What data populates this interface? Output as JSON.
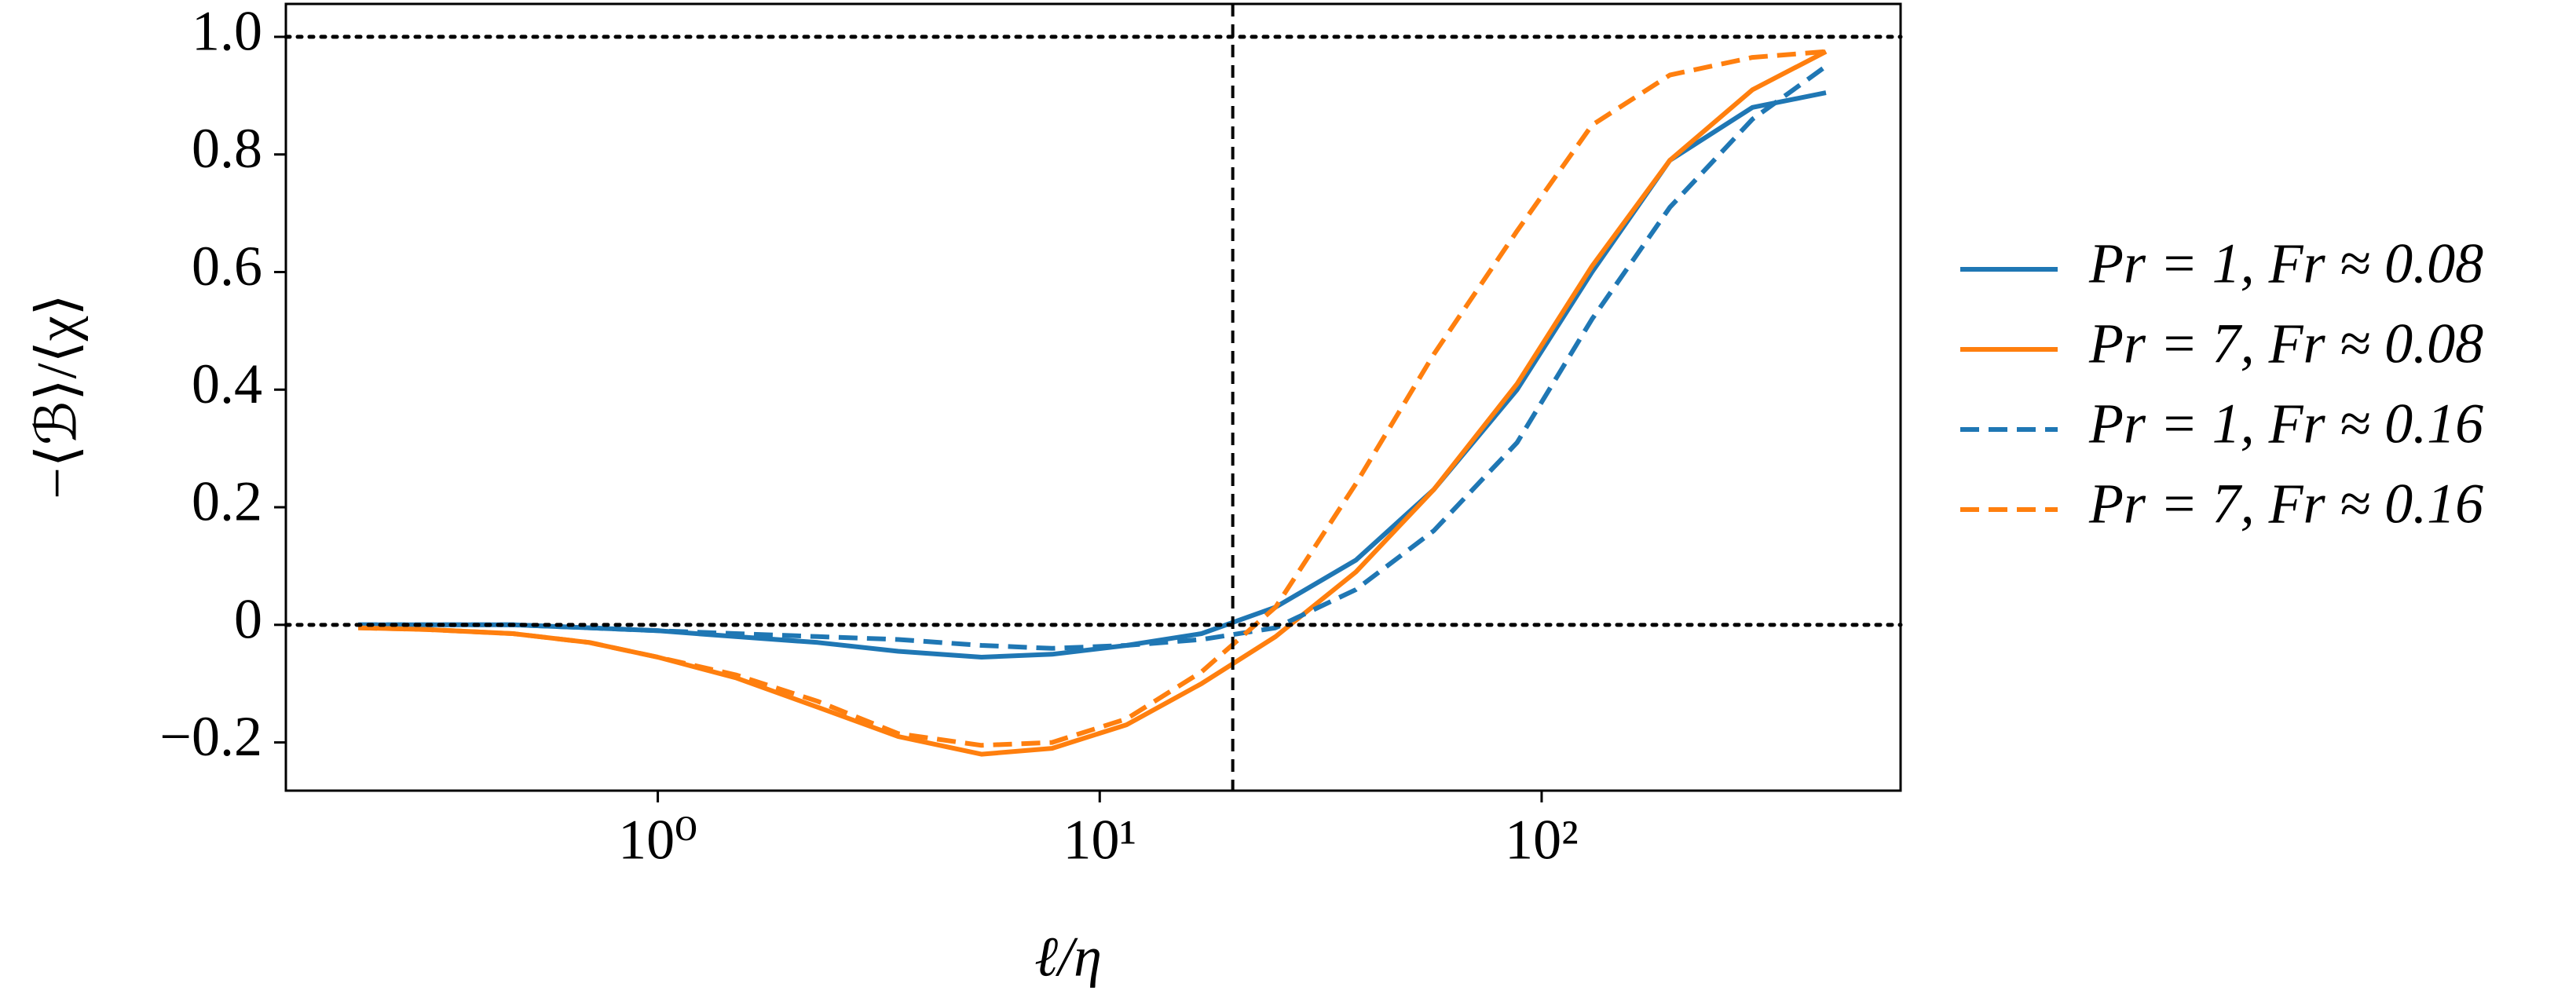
{
  "chart_data": {
    "type": "line",
    "xlabel": "ℓ/η",
    "ylabel": "−⟨ℬ⟩/⟨χ⟩",
    "x": [
      0.21,
      0.3,
      0.47,
      0.7,
      1.0,
      1.5,
      2.3,
      3.5,
      5.4,
      7.8,
      11.5,
      17,
      25,
      38,
      57,
      88,
      130,
      195,
      300,
      440
    ],
    "series": [
      {
        "name": "Pr = 1, Fr ≈ 0.08",
        "color": "#1f77b4",
        "linestyle": "solid",
        "values": [
          0,
          0,
          0,
          -0.005,
          -0.01,
          -0.02,
          -0.03,
          -0.045,
          -0.055,
          -0.05,
          -0.035,
          -0.015,
          0.03,
          0.11,
          0.23,
          0.4,
          0.6,
          0.79,
          0.88,
          0.905
        ]
      },
      {
        "name": "Pr = 7, Fr ≈ 0.08",
        "color": "#ff7f0e",
        "linestyle": "solid",
        "values": [
          -0.005,
          -0.008,
          -0.015,
          -0.03,
          -0.055,
          -0.09,
          -0.14,
          -0.19,
          -0.22,
          -0.21,
          -0.17,
          -0.1,
          -0.02,
          0.09,
          0.23,
          0.41,
          0.61,
          0.79,
          0.91,
          0.975
        ]
      },
      {
        "name": "Pr = 1, Fr ≈ 0.16",
        "color": "#1f77b4",
        "linestyle": "dashed",
        "values": [
          0,
          0,
          0,
          -0.005,
          -0.01,
          -0.015,
          -0.02,
          -0.025,
          -0.035,
          -0.04,
          -0.035,
          -0.025,
          -0.005,
          0.06,
          0.16,
          0.31,
          0.52,
          0.71,
          0.86,
          0.95
        ]
      },
      {
        "name": "Pr = 7, Fr ≈ 0.16",
        "color": "#ff7f0e",
        "linestyle": "dashed",
        "values": [
          -0.005,
          -0.008,
          -0.015,
          -0.03,
          -0.055,
          -0.085,
          -0.13,
          -0.185,
          -0.205,
          -0.2,
          -0.16,
          -0.08,
          0.03,
          0.24,
          0.46,
          0.67,
          0.85,
          0.935,
          0.965,
          0.975
        ]
      }
    ],
    "xscale": "log",
    "xlim": [
      0.144,
      649
    ],
    "ylim": [
      -0.282,
      1.056
    ],
    "xticks": [
      {
        "value": 1,
        "label": "10⁰"
      },
      {
        "value": 10,
        "label": "10¹"
      },
      {
        "value": 100,
        "label": "10²"
      }
    ],
    "yticks": [
      {
        "value": -0.2,
        "label": "−0.2"
      },
      0,
      0.2,
      0.4,
      0.6,
      0.8,
      {
        "value": 1,
        "label": "1.0"
      }
    ],
    "reference_lines": {
      "y": [
        0,
        1
      ],
      "x": [
        20
      ]
    },
    "legend": "outside-right"
  }
}
